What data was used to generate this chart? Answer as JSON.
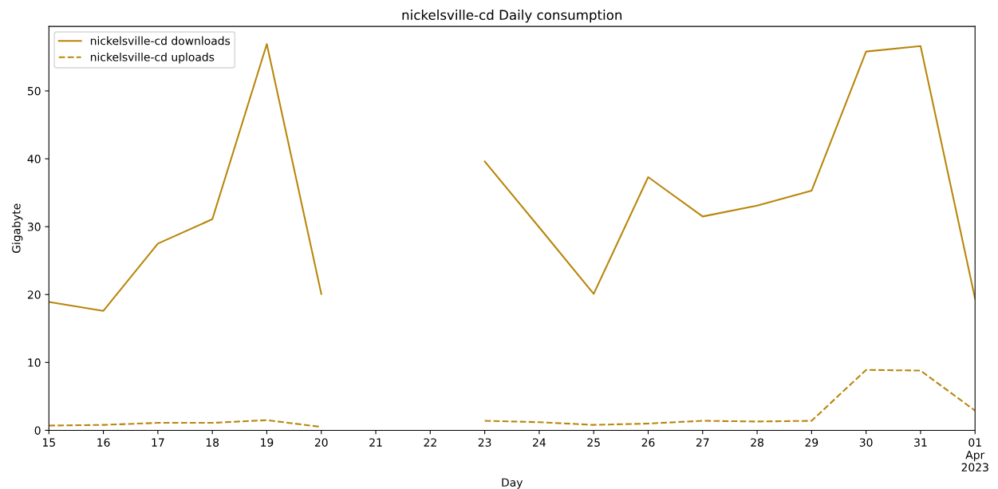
{
  "chart_data": {
    "type": "line",
    "title": "nickelsville-cd Daily consumption",
    "xlabel": "Day",
    "ylabel": "Gigabyte",
    "x": [
      "2023-03-15",
      "2023-03-16",
      "2023-03-17",
      "2023-03-18",
      "2023-03-19",
      "2023-03-20",
      "2023-03-21",
      "2023-03-22",
      "2023-03-23",
      "2023-03-24",
      "2023-03-25",
      "2023-03-26",
      "2023-03-27",
      "2023-03-28",
      "2023-03-29",
      "2023-03-30",
      "2023-03-31",
      "2023-04-01"
    ],
    "series": [
      {
        "name": "nickelsville-cd downloads",
        "color": "#b8860b",
        "line_style": "solid",
        "values": [
          18.9,
          17.6,
          27.5,
          31.1,
          56.9,
          20.1,
          null,
          null,
          39.6,
          29.9,
          20.1,
          37.3,
          31.5,
          33.1,
          35.3,
          55.8,
          56.6,
          19.4
        ]
      },
      {
        "name": "nickelsville-cd uploads",
        "color": "#b8860b",
        "line_style": "dashed",
        "values": [
          0.7,
          0.8,
          1.1,
          1.1,
          1.5,
          0.5,
          null,
          null,
          1.4,
          1.2,
          0.8,
          1.0,
          1.4,
          1.3,
          1.4,
          8.9,
          8.8,
          2.9
        ]
      }
    ],
    "xlim": [
      "2023-03-15",
      "2023-04-01"
    ],
    "xticks": [
      {
        "value": "2023-03-15",
        "label": "15"
      },
      {
        "value": "2023-03-16",
        "label": "16"
      },
      {
        "value": "2023-03-17",
        "label": "17"
      },
      {
        "value": "2023-03-18",
        "label": "18"
      },
      {
        "value": "2023-03-19",
        "label": "19"
      },
      {
        "value": "2023-03-20",
        "label": "20"
      },
      {
        "value": "2023-03-21",
        "label": "21"
      },
      {
        "value": "2023-03-22",
        "label": "22"
      },
      {
        "value": "2023-03-23",
        "label": "23"
      },
      {
        "value": "2023-03-24",
        "label": "24"
      },
      {
        "value": "2023-03-25",
        "label": "25"
      },
      {
        "value": "2023-03-26",
        "label": "26"
      },
      {
        "value": "2023-03-27",
        "label": "27"
      },
      {
        "value": "2023-03-28",
        "label": "28"
      },
      {
        "value": "2023-03-29",
        "label": "29"
      },
      {
        "value": "2023-03-30",
        "label": "30"
      },
      {
        "value": "2023-03-31",
        "label": "31"
      },
      {
        "value": "2023-04-01",
        "label": "01\nApr\n2023"
      }
    ],
    "ylim": [
      0,
      59.5
    ],
    "yticks": [
      0,
      10,
      20,
      30,
      40,
      50
    ],
    "grid": false,
    "legend": "top left",
    "marker": "none"
  }
}
